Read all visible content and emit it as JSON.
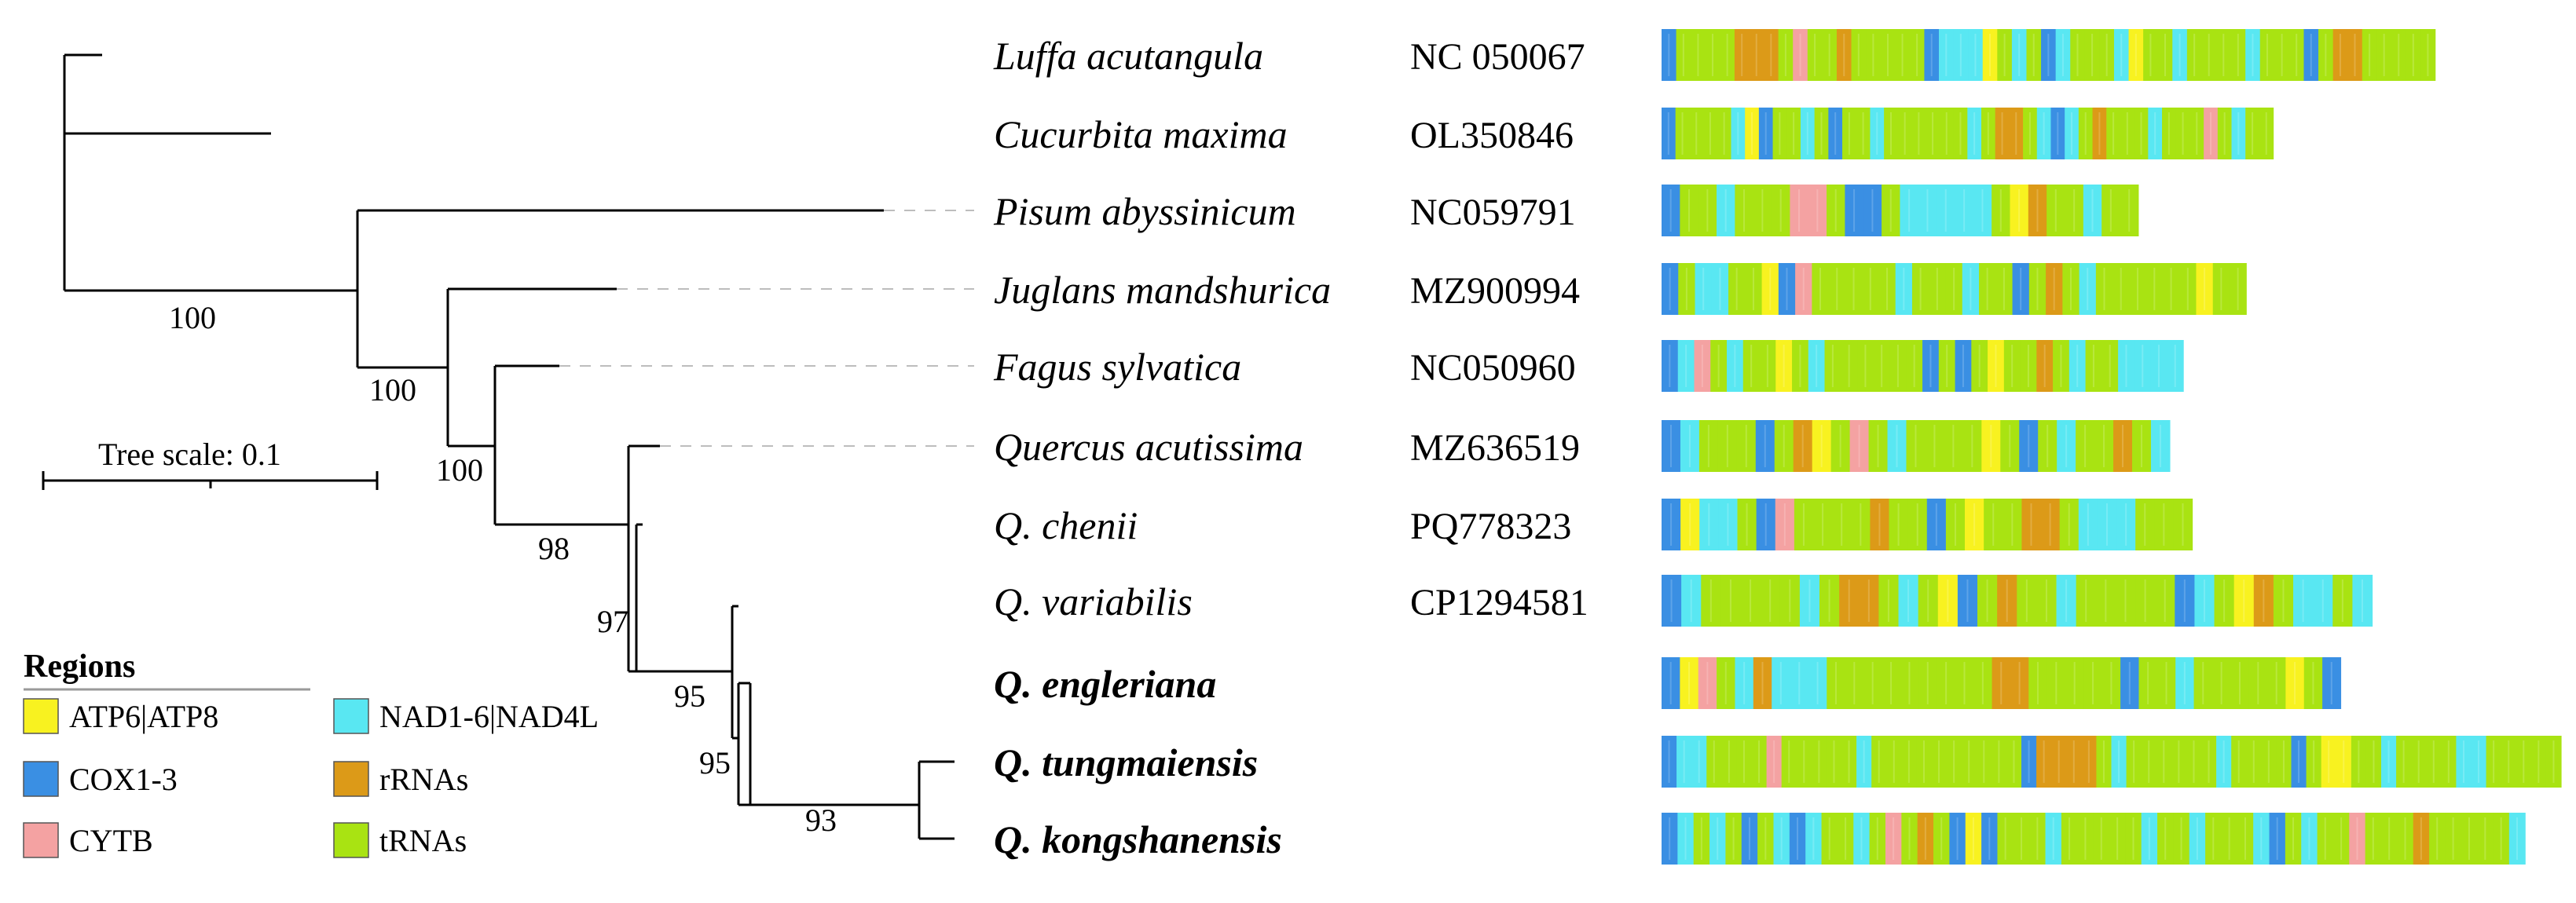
{
  "colors": {
    "ATP6|ATP8": "#f8f220",
    "COX1-3": "#3a8fe3",
    "CYTB": "#f4a2a2",
    "NAD1-6|NAD4L": "#59e7f2",
    "rRNAs": "#dc9a18",
    "tRNAs": "#a9e312"
  },
  "tree": {
    "scale_label": "Tree scale: 0.1",
    "support_values": [
      "100",
      "100",
      "100",
      "98",
      "97",
      "95",
      "95",
      "93"
    ]
  },
  "legend": {
    "title": "Regions",
    "items": [
      {
        "label": "ATP6|ATP8",
        "color": "#f8f220"
      },
      {
        "label": "COX1-3",
        "color": "#3a8fe3"
      },
      {
        "label": "CYTB",
        "color": "#f4a2a2"
      },
      {
        "label": "NAD1-6|NAD4L",
        "color": "#59e7f2"
      },
      {
        "label": "rRNAs",
        "color": "#dc9a18"
      },
      {
        "label": "tRNAs",
        "color": "#a9e312"
      }
    ]
  },
  "taxa": [
    {
      "name": "Luffa acutangula",
      "accession": "NC 050067",
      "bold": false,
      "genome_length": 0.86,
      "segments": [
        "COX1-3",
        "tRNAs",
        "tRNAs",
        "tRNAs",
        "tRNAs",
        "rRNAs",
        "rRNAs",
        "rRNAs",
        "tRNAs",
        "CYTB",
        "tRNAs",
        "tRNAs",
        "rRNAs",
        "tRNAs",
        "tRNAs",
        "tRNAs",
        "tRNAs",
        "tRNAs",
        "COX1-3",
        "NAD1-6|NAD4L",
        "NAD1-6|NAD4L",
        "NAD1-6|NAD4L",
        "ATP6|ATP8",
        "tRNAs",
        "NAD1-6|NAD4L",
        "tRNAs",
        "COX1-3",
        "NAD1-6|NAD4L",
        "tRNAs",
        "tRNAs",
        "tRNAs",
        "NAD1-6|NAD4L",
        "ATP6|ATP8",
        "tRNAs",
        "tRNAs",
        "NAD1-6|NAD4L",
        "tRNAs",
        "tRNAs",
        "tRNAs",
        "tRNAs",
        "NAD1-6|NAD4L",
        "tRNAs",
        "tRNAs",
        "tRNAs",
        "COX1-3",
        "tRNAs",
        "rRNAs",
        "rRNAs",
        "tRNAs",
        "tRNAs",
        "tRNAs",
        "tRNAs",
        "tRNAs"
      ]
    },
    {
      "name": "Cucurbita maxima",
      "accession": "OL350846",
      "bold": false,
      "genome_length": 0.68,
      "segments": [
        "COX1-3",
        "tRNAs",
        "tRNAs",
        "tRNAs",
        "tRNAs",
        "NAD1-6|NAD4L",
        "ATP6|ATP8",
        "COX1-3",
        "tRNAs",
        "tRNAs",
        "NAD1-6|NAD4L",
        "tRNAs",
        "COX1-3",
        "tRNAs",
        "tRNAs",
        "NAD1-6|NAD4L",
        "tRNAs",
        "tRNAs",
        "tRNAs",
        "tRNAs",
        "tRNAs",
        "tRNAs",
        "NAD1-6|NAD4L",
        "tRNAs",
        "rRNAs",
        "rRNAs",
        "tRNAs",
        "NAD1-6|NAD4L",
        "COX1-3",
        "NAD1-6|NAD4L",
        "tRNAs",
        "rRNAs",
        "tRNAs",
        "tRNAs",
        "tRNAs",
        "NAD1-6|NAD4L",
        "tRNAs",
        "tRNAs",
        "tRNAs",
        "CYTB",
        "tRNAs",
        "NAD1-6|NAD4L",
        "tRNAs",
        "tRNAs"
      ]
    },
    {
      "name": "Pisum abyssinicum",
      "accession": "NC059791",
      "bold": false,
      "genome_length": 0.53,
      "segments": [
        "COX1-3",
        "tRNAs",
        "tRNAs",
        "NAD1-6|NAD4L",
        "tRNAs",
        "tRNAs",
        "tRNAs",
        "CYTB",
        "CYTB",
        "tRNAs",
        "COX1-3",
        "COX1-3",
        "tRNAs",
        "NAD1-6|NAD4L",
        "NAD1-6|NAD4L",
        "NAD1-6|NAD4L",
        "NAD1-6|NAD4L",
        "NAD1-6|NAD4L",
        "tRNAs",
        "ATP6|ATP8",
        "rRNAs",
        "tRNAs",
        "tRNAs",
        "NAD1-6|NAD4L",
        "tRNAs",
        "tRNAs"
      ]
    },
    {
      "name": "Juglans mandshurica",
      "accession": "MZ900994",
      "bold": false,
      "genome_length": 0.65,
      "segments": [
        "COX1-3",
        "tRNAs",
        "NAD1-6|NAD4L",
        "NAD1-6|NAD4L",
        "tRNAs",
        "tRNAs",
        "ATP6|ATP8",
        "COX1-3",
        "CYTB",
        "tRNAs",
        "tRNAs",
        "tRNAs",
        "tRNAs",
        "tRNAs",
        "NAD1-6|NAD4L",
        "tRNAs",
        "tRNAs",
        "tRNAs",
        "NAD1-6|NAD4L",
        "tRNAs",
        "tRNAs",
        "COX1-3",
        "tRNAs",
        "rRNAs",
        "tRNAs",
        "NAD1-6|NAD4L",
        "tRNAs",
        "tRNAs",
        "tRNAs",
        "tRNAs",
        "tRNAs",
        "tRNAs",
        "ATP6|ATP8",
        "tRNAs",
        "tRNAs"
      ]
    },
    {
      "name": "Fagus sylvatica",
      "accession": "NC050960",
      "bold": false,
      "genome_length": 0.58,
      "segments": [
        "COX1-3",
        "NAD1-6|NAD4L",
        "CYTB",
        "tRNAs",
        "NAD1-6|NAD4L",
        "tRNAs",
        "tRNAs",
        "ATP6|ATP8",
        "tRNAs",
        "NAD1-6|NAD4L",
        "tRNAs",
        "tRNAs",
        "tRNAs",
        "tRNAs",
        "tRNAs",
        "tRNAs",
        "COX1-3",
        "tRNAs",
        "COX1-3",
        "tRNAs",
        "ATP6|ATP8",
        "tRNAs",
        "tRNAs",
        "rRNAs",
        "tRNAs",
        "NAD1-6|NAD4L",
        "tRNAs",
        "tRNAs",
        "NAD1-6|NAD4L",
        "NAD1-6|NAD4L",
        "NAD1-6|NAD4L",
        "NAD1-6|NAD4L"
      ]
    },
    {
      "name": "Quercus acutissima",
      "accession": "MZ636519",
      "bold": false,
      "genome_length": 0.565,
      "segments": [
        "COX1-3",
        "NAD1-6|NAD4L",
        "tRNAs",
        "tRNAs",
        "tRNAs",
        "COX1-3",
        "tRNAs",
        "rRNAs",
        "ATP6|ATP8",
        "tRNAs",
        "CYTB",
        "tRNAs",
        "NAD1-6|NAD4L",
        "tRNAs",
        "tRNAs",
        "tRNAs",
        "tRNAs",
        "ATP6|ATP8",
        "tRNAs",
        "COX1-3",
        "tRNAs",
        "NAD1-6|NAD4L",
        "tRNAs",
        "tRNAs",
        "rRNAs",
        "tRNAs",
        "NAD1-6|NAD4L"
      ]
    },
    {
      "name": "Q. chenii",
      "accession": "PQ778323",
      "bold": false,
      "genome_length": 0.59,
      "segments": [
        "COX1-3",
        "ATP6|ATP8",
        "NAD1-6|NAD4L",
        "NAD1-6|NAD4L",
        "tRNAs",
        "COX1-3",
        "CYTB",
        "tRNAs",
        "tRNAs",
        "tRNAs",
        "tRNAs",
        "rRNAs",
        "tRNAs",
        "tRNAs",
        "COX1-3",
        "tRNAs",
        "ATP6|ATP8",
        "tRNAs",
        "tRNAs",
        "rRNAs",
        "rRNAs",
        "tRNAs",
        "NAD1-6|NAD4L",
        "NAD1-6|NAD4L",
        "NAD1-6|NAD4L",
        "tRNAs",
        "tRNAs",
        "tRNAs"
      ]
    },
    {
      "name": "Q. variabilis",
      "accession": "CP1294581",
      "bold": false,
      "genome_length": 0.79,
      "segments": [
        "COX1-3",
        "NAD1-6|NAD4L",
        "tRNAs",
        "tRNAs",
        "tRNAs",
        "tRNAs",
        "tRNAs",
        "NAD1-6|NAD4L",
        "tRNAs",
        "rRNAs",
        "rRNAs",
        "tRNAs",
        "NAD1-6|NAD4L",
        "tRNAs",
        "ATP6|ATP8",
        "COX1-3",
        "tRNAs",
        "rRNAs",
        "tRNAs",
        "tRNAs",
        "NAD1-6|NAD4L",
        "tRNAs",
        "tRNAs",
        "tRNAs",
        "tRNAs",
        "tRNAs",
        "COX1-3",
        "NAD1-6|NAD4L",
        "tRNAs",
        "ATP6|ATP8",
        "rRNAs",
        "tRNAs",
        "NAD1-6|NAD4L",
        "NAD1-6|NAD4L",
        "tRNAs",
        "NAD1-6|NAD4L"
      ]
    },
    {
      "name": "Q. engleriana",
      "accession": "",
      "bold": true,
      "genome_length": 0.755,
      "segments": [
        "COX1-3",
        "ATP6|ATP8",
        "CYTB",
        "tRNAs",
        "NAD1-6|NAD4L",
        "rRNAs",
        "NAD1-6|NAD4L",
        "NAD1-6|NAD4L",
        "NAD1-6|NAD4L",
        "tRNAs",
        "tRNAs",
        "tRNAs",
        "tRNAs",
        "tRNAs",
        "tRNAs",
        "tRNAs",
        "tRNAs",
        "tRNAs",
        "rRNAs",
        "rRNAs",
        "tRNAs",
        "tRNAs",
        "tRNAs",
        "tRNAs",
        "tRNAs",
        "COX1-3",
        "tRNAs",
        "tRNAs",
        "NAD1-6|NAD4L",
        "tRNAs",
        "tRNAs",
        "tRNAs",
        "tRNAs",
        "tRNAs",
        "ATP6|ATP8",
        "tRNAs",
        "COX1-3"
      ]
    },
    {
      "name": "Q. tungmaiensis",
      "accession": "",
      "bold": true,
      "genome_length": 1.0,
      "segments": [
        "COX1-3",
        "NAD1-6|NAD4L",
        "NAD1-6|NAD4L",
        "tRNAs",
        "tRNAs",
        "tRNAs",
        "tRNAs",
        "CYTB",
        "tRNAs",
        "tRNAs",
        "tRNAs",
        "tRNAs",
        "tRNAs",
        "NAD1-6|NAD4L",
        "tRNAs",
        "tRNAs",
        "tRNAs",
        "tRNAs",
        "tRNAs",
        "tRNAs",
        "tRNAs",
        "tRNAs",
        "tRNAs",
        "tRNAs",
        "COX1-3",
        "rRNAs",
        "rRNAs",
        "rRNAs",
        "rRNAs",
        "tRNAs",
        "NAD1-6|NAD4L",
        "tRNAs",
        "tRNAs",
        "tRNAs",
        "tRNAs",
        "tRNAs",
        "tRNAs",
        "NAD1-6|NAD4L",
        "tRNAs",
        "tRNAs",
        "tRNAs",
        "tRNAs",
        "COX1-3",
        "tRNAs",
        "ATP6|ATP8",
        "ATP6|ATP8",
        "tRNAs",
        "tRNAs",
        "NAD1-6|NAD4L",
        "tRNAs",
        "tRNAs",
        "tRNAs",
        "tRNAs",
        "NAD1-6|NAD4L",
        "NAD1-6|NAD4L",
        "tRNAs",
        "tRNAs",
        "tRNAs",
        "tRNAs",
        "tRNAs"
      ]
    },
    {
      "name": "Q. kongshanensis",
      "accession": "",
      "bold": true,
      "genome_length": 0.96,
      "segments": [
        "COX1-3",
        "NAD1-6|NAD4L",
        "tRNAs",
        "NAD1-6|NAD4L",
        "tRNAs",
        "COX1-3",
        "tRNAs",
        "NAD1-6|NAD4L",
        "COX1-3",
        "NAD1-6|NAD4L",
        "tRNAs",
        "tRNAs",
        "NAD1-6|NAD4L",
        "tRNAs",
        "CYTB",
        "tRNAs",
        "rRNAs",
        "tRNAs",
        "COX1-3",
        "ATP6|ATP8",
        "COX1-3",
        "tRNAs",
        "tRNAs",
        "tRNAs",
        "NAD1-6|NAD4L",
        "tRNAs",
        "tRNAs",
        "tRNAs",
        "tRNAs",
        "tRNAs",
        "NAD1-6|NAD4L",
        "tRNAs",
        "tRNAs",
        "NAD1-6|NAD4L",
        "tRNAs",
        "tRNAs",
        "tRNAs",
        "NAD1-6|NAD4L",
        "COX1-3",
        "tRNAs",
        "NAD1-6|NAD4L",
        "tRNAs",
        "tRNAs",
        "CYTB",
        "tRNAs",
        "tRNAs",
        "tRNAs",
        "rRNAs",
        "tRNAs",
        "tRNAs",
        "tRNAs",
        "tRNAs",
        "tRNAs",
        "NAD1-6|NAD4L"
      ]
    }
  ]
}
